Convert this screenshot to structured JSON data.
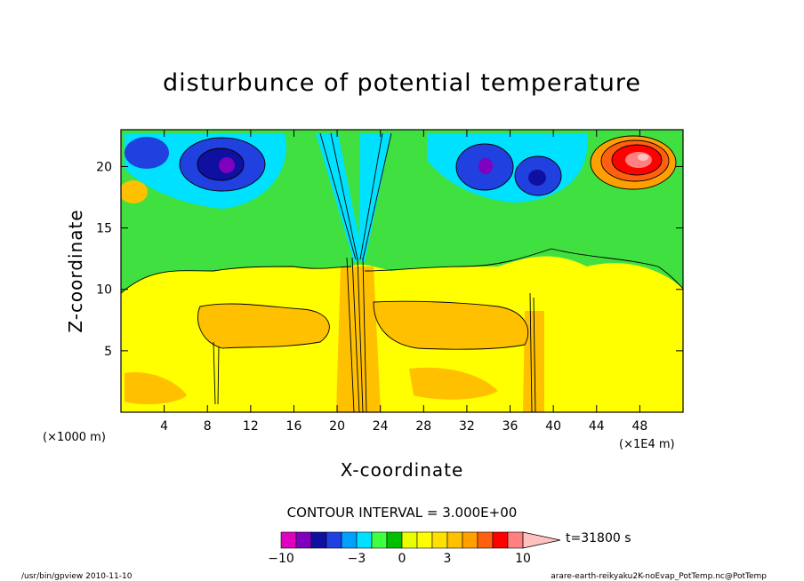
{
  "chart_data": {
    "type": "heatmap",
    "title": "disturbunce of potential temperature",
    "xlabel": "X-coordinate",
    "ylabel": "Z-coordinate",
    "x_unit_left": "(×1000 m)",
    "x_unit_right": "(×1E4 m)",
    "xlim": [
      0,
      52
    ],
    "ylim": [
      0,
      23
    ],
    "x_ticks": [
      4,
      8,
      12,
      16,
      20,
      24,
      28,
      32,
      36,
      40,
      44,
      48
    ],
    "y_ticks": [
      5,
      10,
      15,
      20
    ],
    "contour_interval": "CONTOUR INTERVAL = 3.000E+00",
    "time_label": "t=31800 s",
    "colorbar": {
      "levels": [
        -10,
        -9,
        -8,
        -7,
        -6,
        -5,
        -4,
        -3,
        -2,
        -1,
        0,
        1,
        2,
        3,
        4,
        5,
        6,
        8,
        10
      ],
      "tick_labels": [
        "−10",
        "−3",
        "0",
        "3",
        "10"
      ],
      "colors": [
        "#e000c0",
        "#8000c0",
        "#1010a0",
        "#2040e0",
        "#00a0ff",
        "#00e0ff",
        "#40ff40",
        "#00c000",
        "#e8ff00",
        "#ffff00",
        "#ffe000",
        "#ffc000",
        "#ffa000",
        "#ff6010",
        "#ff0000",
        "#ff8080",
        "#ffc0c0"
      ]
    },
    "features": [
      {
        "x": 9.5,
        "z": 20,
        "value": -9,
        "label": "negative anomaly"
      },
      {
        "x": 33,
        "z": 20,
        "value": -8,
        "label": "negative anomaly"
      },
      {
        "x": 47,
        "z": 20.5,
        "value": 10,
        "label": "positive anomaly"
      },
      {
        "x": 21.5,
        "z": 15,
        "value": -4,
        "label": "central plume"
      }
    ]
  },
  "footer": {
    "left": "/usr/bin/gpview  2010-11-10",
    "right": "arare-earth-reikyaku2K-noEvap_PotTemp.nc@PotTemp"
  }
}
